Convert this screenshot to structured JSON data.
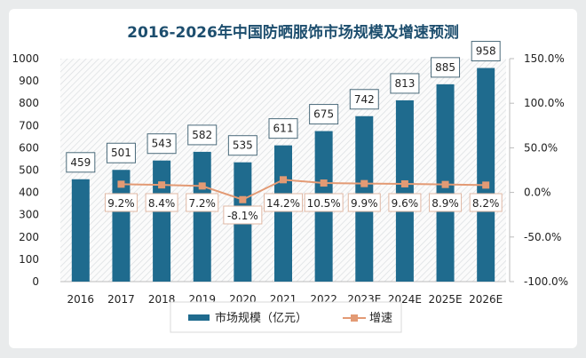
{
  "chart_data": {
    "type": "bar+line",
    "title": "2016-2026年中国防晒服饰市场规模及增速预测",
    "categories": [
      "2016",
      "2017",
      "2018",
      "2019",
      "2020",
      "2021",
      "2022",
      "2023E",
      "2024E",
      "2025E",
      "2026E"
    ],
    "series": [
      {
        "name": "市场规模（亿元）",
        "type": "bar",
        "axis": "left",
        "color": "#1f6b8e",
        "values": [
          459,
          501,
          543,
          582,
          535,
          611,
          675,
          742,
          813,
          885,
          958
        ]
      },
      {
        "name": "增速",
        "type": "line",
        "axis": "right",
        "unit": "%",
        "color": "#e39a74",
        "values": [
          null,
          9.2,
          8.4,
          7.2,
          -8.1,
          14.2,
          10.5,
          9.9,
          9.6,
          8.9,
          8.2
        ]
      }
    ],
    "left_axis": {
      "ylim": [
        0,
        1000
      ],
      "ticks": [
        "0",
        "100",
        "200",
        "300",
        "400",
        "500",
        "600",
        "700",
        "800",
        "900",
        "1000"
      ]
    },
    "right_axis": {
      "ylim": [
        -100,
        150
      ],
      "ticks": [
        "-100.0%",
        "-50.0%",
        "0.0%",
        "50.0%",
        "100.0%",
        "150.0%"
      ]
    },
    "legend_position": "bottom",
    "grid": false
  }
}
